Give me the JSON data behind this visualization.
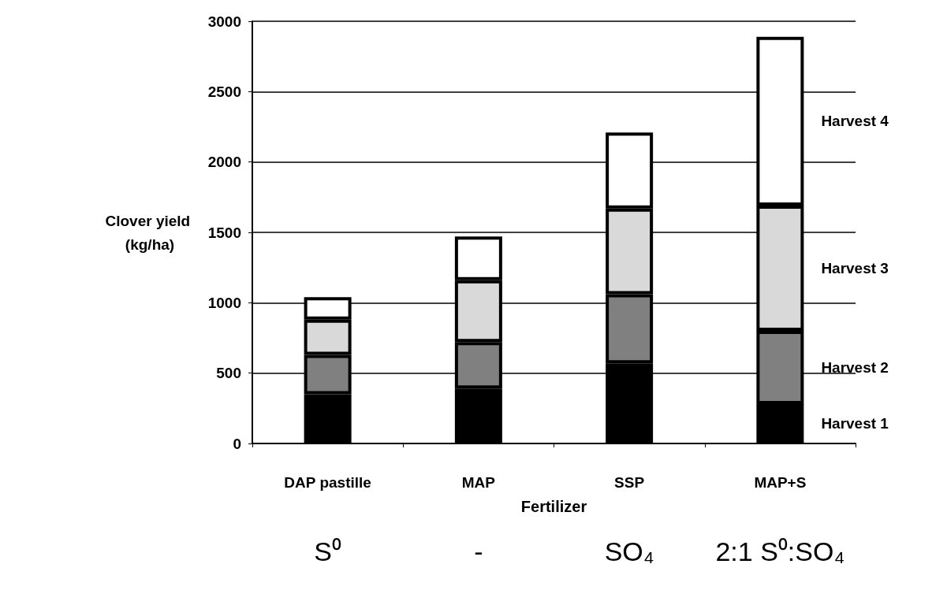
{
  "chart_data": {
    "type": "bar",
    "stacked": true,
    "xlabel": "Fertilizer",
    "ylabel": "Clover yield (kg/ha)",
    "categories": [
      "DAP pastille",
      "MAP",
      "SSP",
      "MAP+S"
    ],
    "series": [
      {
        "name": "Harvest 1",
        "color": "#000000",
        "values": [
          350,
          390,
          570,
          280
        ]
      },
      {
        "name": "Harvest 2",
        "color": "#808080",
        "values": [
          280,
          330,
          490,
          520
        ]
      },
      {
        "name": "Harvest 3",
        "color": "#d9d9d9",
        "values": [
          250,
          440,
          610,
          890
        ]
      },
      {
        "name": "Harvest 4",
        "color": "#ffffff",
        "values": [
          160,
          310,
          540,
          1200
        ]
      }
    ],
    "ylim": [
      0,
      3000
    ],
    "yticks": [
      0,
      500,
      1000,
      1500,
      2000,
      2500,
      3000
    ],
    "grid": "y",
    "annotations": [
      "S⁰",
      "-",
      "SO₄",
      "2:1 S⁰:SO₄"
    ]
  }
}
